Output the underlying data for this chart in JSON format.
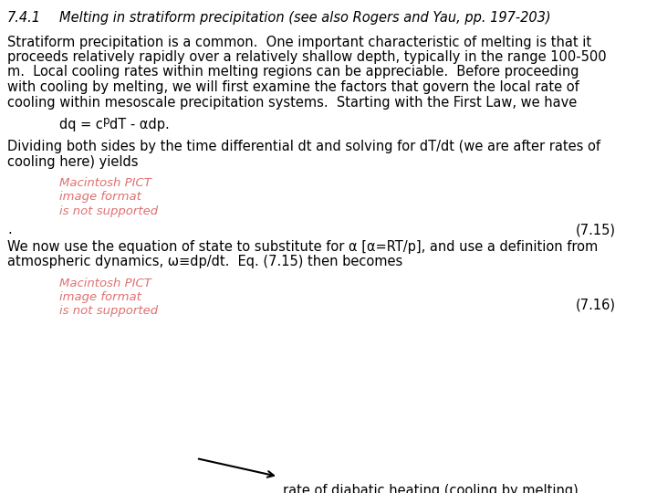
{
  "bg_color": "#ffffff",
  "title_number": "7.4.1",
  "title_text": "Melting in stratiform precipitation (see also Rogers and Yau, pp. 197-203)",
  "para1_lines": [
    "Stratiform precipitation is a common.  One important characteristic of melting is that it",
    "proceeds relatively rapidly over a relatively shallow depth, typically in the range 100-500",
    "m.  Local cooling rates within melting regions can be appreciable.  Before proceeding",
    "with cooling by melting, we will first examine the factors that govern the local rate of",
    "cooling within mesoscale precipitation systems.  Starting with the First Law, we have"
  ],
  "eq1_pre": "dq = c",
  "eq1_sub": "p",
  "eq1_post": "dT - αdp.",
  "para2_lines": [
    "Dividing both sides by the time differential dt and solving for dT/dt (we are after rates of",
    "cooling here) yields"
  ],
  "pict_label1_lines": [
    "Macintosh PICT",
    "image format",
    "is not supported"
  ],
  "dot": ".",
  "eq_number1": "(7.15)",
  "para3_lines": [
    "We now use the equation of state to substitute for α [α=RT/p], and use a definition from",
    "atmospheric dynamics, ω≡dp/dt.  Eq. (7.15) then becomes"
  ],
  "pict_label2_lines": [
    "Macintosh PICT",
    "image format",
    "is not supported"
  ],
  "eq_number2": "(7.16)",
  "arrow_label": "rate of diabatic heating (cooling by melting)",
  "red_color": "#e07070",
  "black_color": "#000000",
  "title_fontsize": 10.5,
  "body_fontsize": 10.5,
  "pict_fontsize": 9.5
}
